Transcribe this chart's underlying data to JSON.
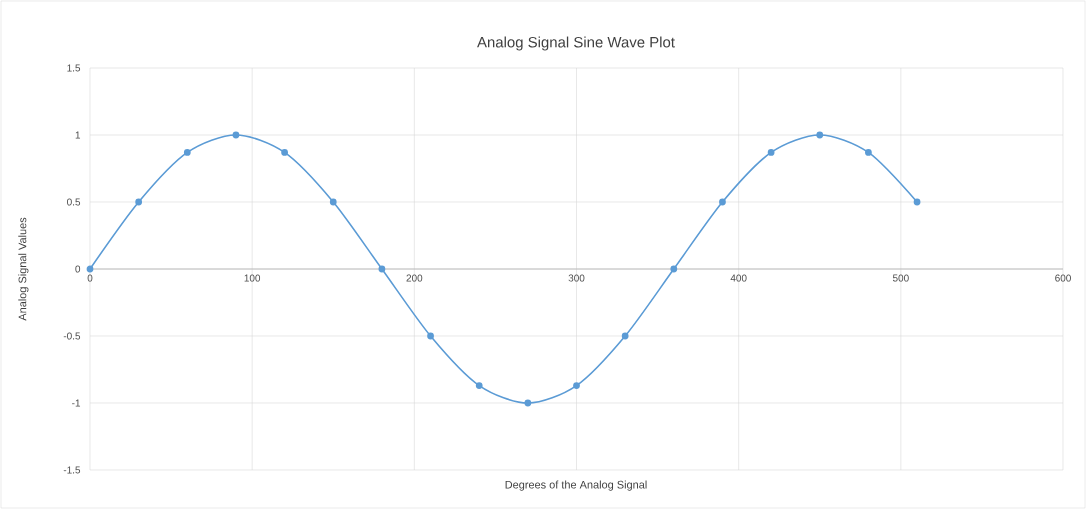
{
  "chart_data": {
    "type": "line",
    "title": "Analog Signal Sine Wave Plot",
    "xlabel": "Degrees of the Analog Signal",
    "ylabel": "Analog Signal Values",
    "x": [
      0,
      30,
      60,
      90,
      120,
      150,
      180,
      210,
      240,
      270,
      300,
      330,
      360,
      390,
      420,
      450,
      480,
      510
    ],
    "series": [
      {
        "color": "#5b9bd5",
        "values": [
          0,
          0.5,
          0.87,
          1,
          0.87,
          0.5,
          0,
          -0.5,
          -0.87,
          -1,
          -0.87,
          -0.5,
          0,
          0.5,
          0.87,
          1,
          0.87,
          0.5
        ]
      }
    ],
    "xlim": [
      0,
      600
    ],
    "xticks": [
      0,
      100,
      200,
      300,
      400,
      500,
      600
    ],
    "ylim": [
      -1.5,
      1.5
    ],
    "yticks": [
      -1.5,
      -1,
      -0.5,
      0,
      0.5,
      1,
      1.5
    ],
    "grid": true,
    "marker": "circle",
    "line_style": "solid"
  }
}
